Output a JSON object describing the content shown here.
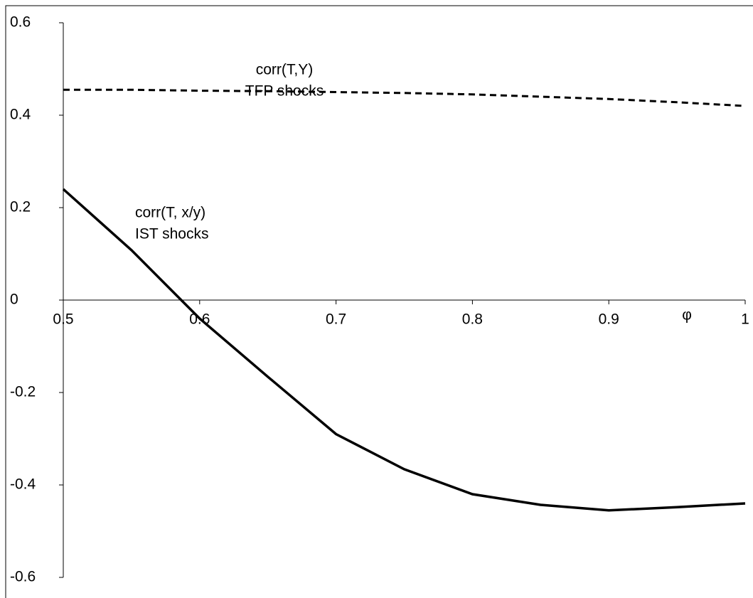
{
  "chart_data": {
    "type": "line",
    "xlabel": "φ",
    "x": [
      0.5,
      0.55,
      0.6,
      0.65,
      0.7,
      0.75,
      0.8,
      0.85,
      0.9,
      0.95,
      1.0
    ],
    "series": [
      {
        "color": "#000000",
        "dash": "dashed",
        "values": [
          0.455,
          0.455,
          0.453,
          0.452,
          0.45,
          0.448,
          0.445,
          0.44,
          0.435,
          0.428,
          0.42
        ]
      },
      {
        "color": "#000000",
        "dash": "solid",
        "values": [
          0.24,
          0.108,
          -0.04,
          -0.166,
          -0.29,
          -0.366,
          -0.42,
          -0.443,
          -0.455,
          -0.448,
          -0.44
        ]
      }
    ],
    "annotations": [
      {
        "lines": [
          "corr(T,Y)",
          "TFP shocks"
        ]
      },
      {
        "lines": [
          "corr(T, x/y)",
          "IST shocks"
        ]
      }
    ],
    "xlim": [
      0.5,
      1.0
    ],
    "xticks": [
      0.5,
      0.6,
      0.7,
      0.8,
      0.9,
      1
    ],
    "ylim": [
      -0.6,
      0.6
    ],
    "yticks": [
      -0.6,
      -0.4,
      -0.2,
      0,
      0.2,
      0.4,
      0.6
    ],
    "grid": false
  }
}
